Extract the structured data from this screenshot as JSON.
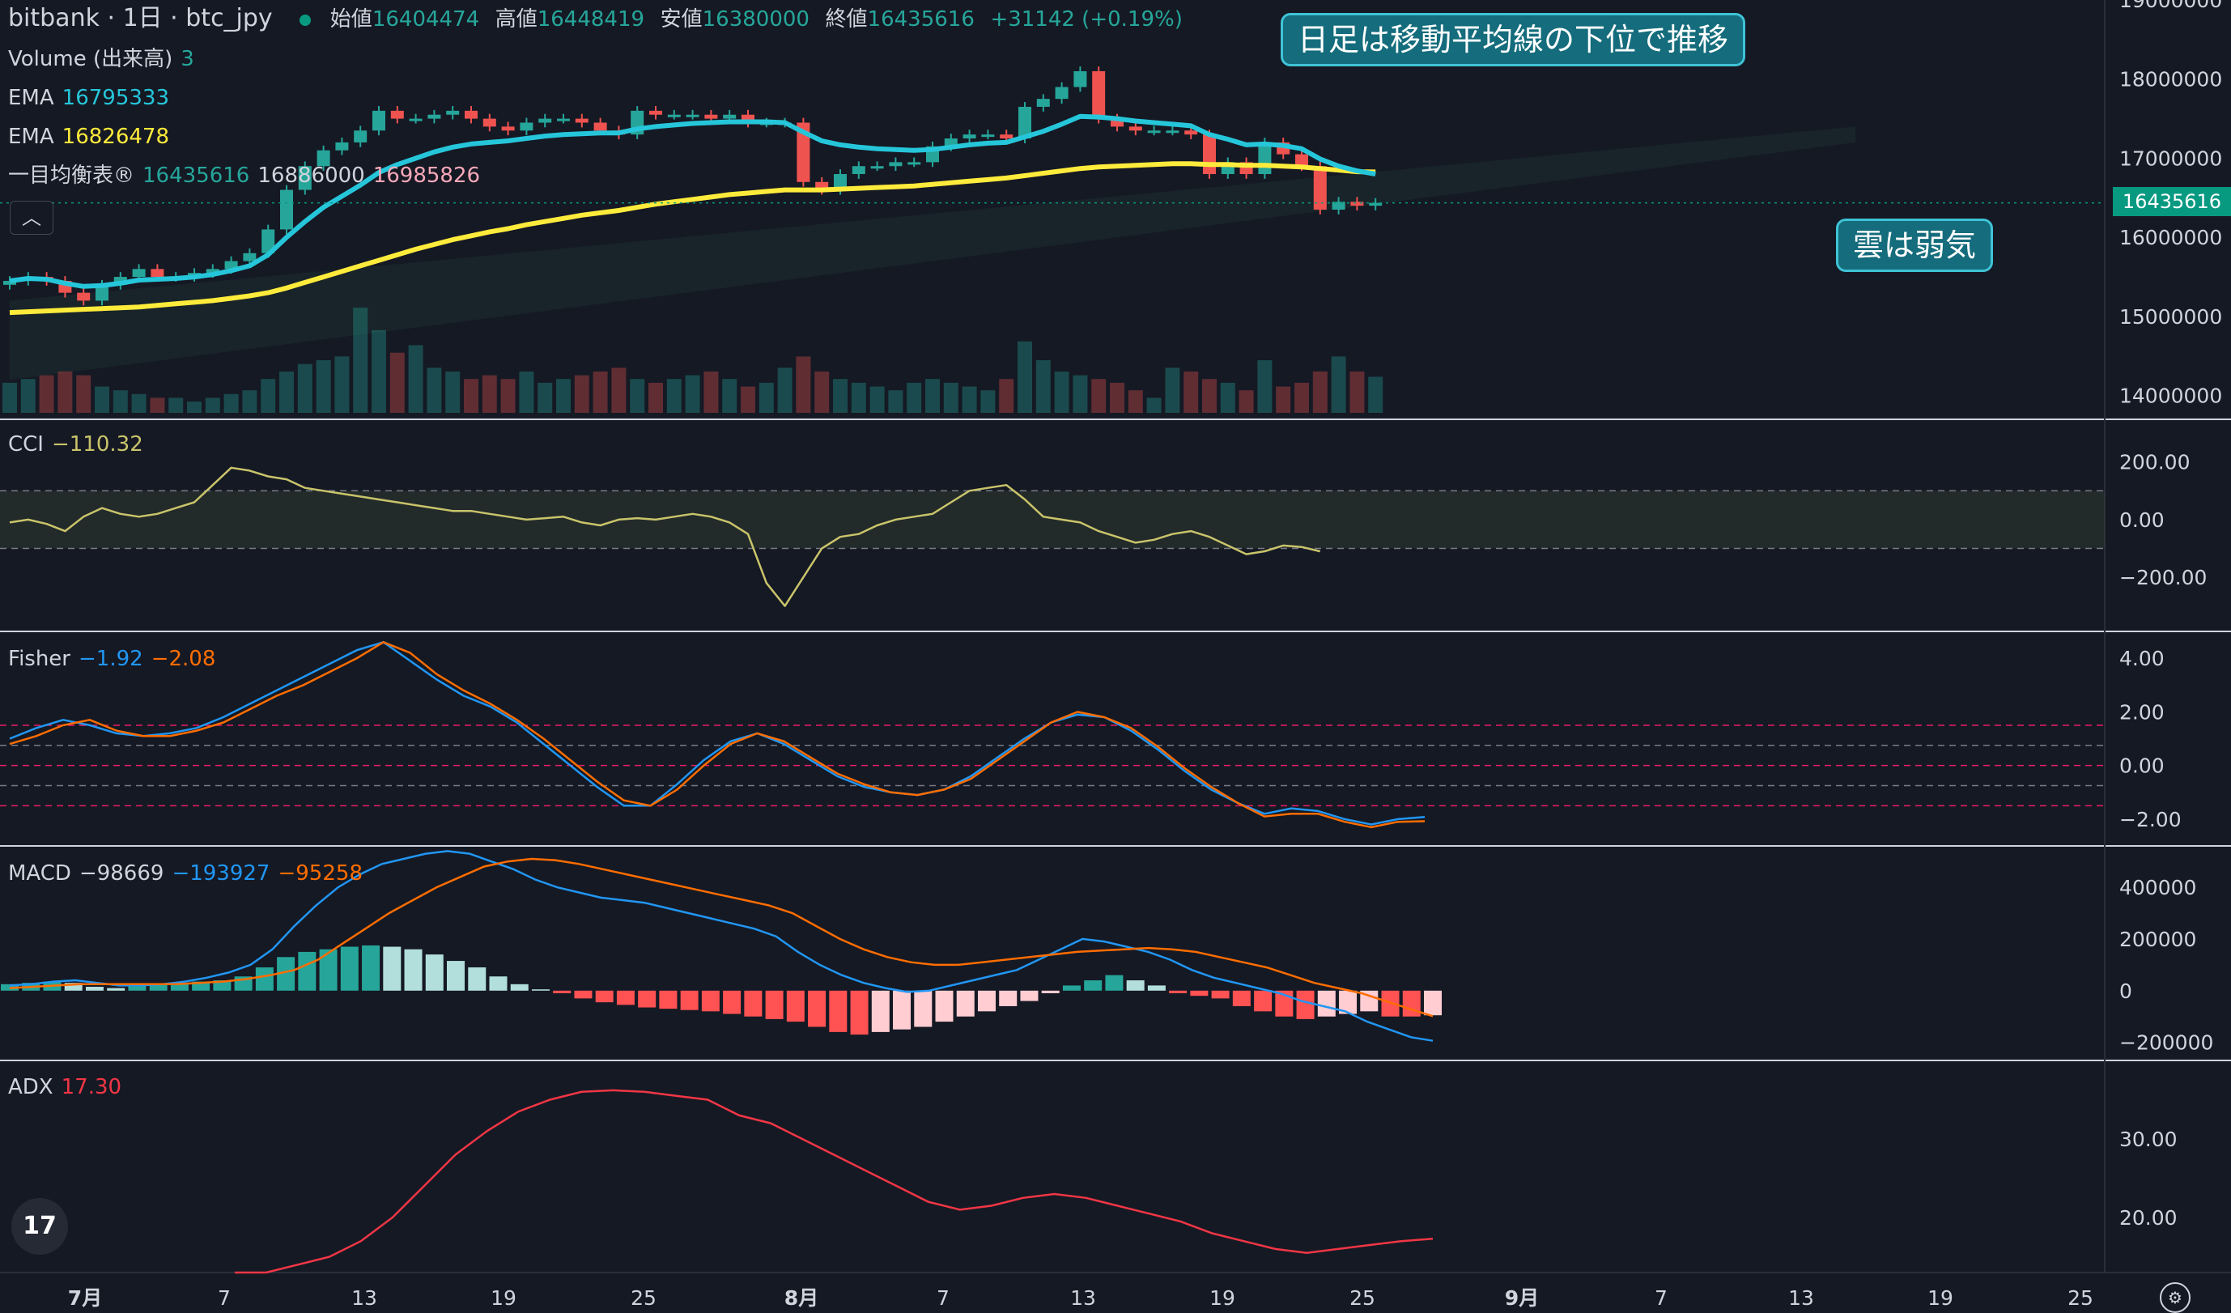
{
  "header": {
    "symbol": "bitbank · 1日 · btc_jpy",
    "open_label": "始値",
    "open": "16404474",
    "high_label": "高値",
    "high": "16448419",
    "low_label": "安値",
    "low": "16380000",
    "close_label": "終値",
    "close": "16435616",
    "change": "+31142 (+0.19%)"
  },
  "legends": {
    "volume_label": "Volume (出来高)",
    "volume_value": "3",
    "ema1_label": "EMA",
    "ema1_value": "16795333",
    "ema2_label": "EMA",
    "ema2_value": "16826478",
    "ichimoku_label": "一目均衡表®",
    "ichi_v1": "16435616",
    "ichi_v2": "16886000",
    "ichi_v3": "16985826",
    "cci_label": "CCI",
    "cci_value": "−110.32",
    "fisher_label": "Fisher",
    "fisher_v1": "−1.92",
    "fisher_v2": "−2.08",
    "macd_label": "MACD",
    "macd_v1": "−98669",
    "macd_v2": "−193927",
    "macd_v3": "−95258",
    "adx_label": "ADX",
    "adx_value": "17.30"
  },
  "callouts": {
    "top": "日足は移動平均線の下位で推移",
    "right": "雲は弱気"
  },
  "price_tag": "16435616",
  "colors": {
    "background": "#151924",
    "up": "#26a69a",
    "down": "#ef5350",
    "ema_fast": "#26c6da",
    "ema_slow": "#ffeb3b",
    "cci": "#c9c46a",
    "fisher1": "#2196f3",
    "fisher2": "#ff6d00",
    "macd": "#2196f3",
    "signal": "#ff6d00",
    "adx": "#f23645"
  },
  "chart_data": [
    {
      "type": "candlestick",
      "title": "bitbank · 1日 · btc_jpy",
      "x_labels": [
        "7月",
        "7",
        "13",
        "19",
        "25",
        "8月",
        "7",
        "13",
        "19",
        "25",
        "9月",
        "7",
        "13",
        "19",
        "25"
      ],
      "y_ticks": [
        "19000000",
        "18000000",
        "17000000",
        "16000000",
        "15000000",
        "14000000"
      ],
      "ylim": [
        13700000,
        19000000
      ],
      "close": [
        15450000,
        15500000,
        15450000,
        15300000,
        15200000,
        15400000,
        15500000,
        15600000,
        15500000,
        15500000,
        15550000,
        15600000,
        15700000,
        15800000,
        16100000,
        16600000,
        16900000,
        17100000,
        17200000,
        17350000,
        17600000,
        17500000,
        17500000,
        17550000,
        17600000,
        17500000,
        17400000,
        17350000,
        17450000,
        17500000,
        17500000,
        17450000,
        17350000,
        17300000,
        17600000,
        17550000,
        17550000,
        17550000,
        17500000,
        17550000,
        17450000,
        17450000,
        17450000,
        16700000,
        16600000,
        16800000,
        16900000,
        16900000,
        16950000,
        16950000,
        17150000,
        17250000,
        17300000,
        17300000,
        17250000,
        17650000,
        17750000,
        17900000,
        18100000,
        17500000,
        17400000,
        17350000,
        17350000,
        17350000,
        17300000,
        16800000,
        16950000,
        16800000,
        17200000,
        17050000,
        16900000,
        16350000,
        16450000,
        16400000,
        16435616
      ],
      "ema_fast": [
        15450000,
        15480000,
        15470000,
        15420000,
        15380000,
        15390000,
        15420000,
        15460000,
        15470000,
        15480000,
        15500000,
        15530000,
        15580000,
        15640000,
        15780000,
        16000000,
        16200000,
        16380000,
        16520000,
        16660000,
        16820000,
        16920000,
        17000000,
        17080000,
        17140000,
        17180000,
        17200000,
        17220000,
        17250000,
        17280000,
        17300000,
        17310000,
        17320000,
        17320000,
        17370000,
        17400000,
        17420000,
        17440000,
        17450000,
        17460000,
        17460000,
        17460000,
        17450000,
        17330000,
        17220000,
        17170000,
        17140000,
        17120000,
        17110000,
        17100000,
        17110000,
        17140000,
        17170000,
        17190000,
        17200000,
        17270000,
        17340000,
        17430000,
        17530000,
        17520000,
        17500000,
        17470000,
        17450000,
        17430000,
        17410000,
        17300000,
        17240000,
        17170000,
        17180000,
        17160000,
        17120000,
        16990000,
        16900000,
        16840000,
        16800000
      ],
      "ema_slow": [
        15050000,
        15060000,
        15070000,
        15080000,
        15090000,
        15100000,
        15110000,
        15120000,
        15140000,
        15160000,
        15180000,
        15200000,
        15230000,
        15260000,
        15300000,
        15360000,
        15430000,
        15500000,
        15570000,
        15640000,
        15710000,
        15780000,
        15850000,
        15910000,
        15970000,
        16020000,
        16070000,
        16110000,
        16160000,
        16200000,
        16240000,
        16280000,
        16310000,
        16340000,
        16380000,
        16420000,
        16450000,
        16480000,
        16510000,
        16540000,
        16560000,
        16580000,
        16600000,
        16600000,
        16600000,
        16610000,
        16620000,
        16630000,
        16640000,
        16650000,
        16670000,
        16690000,
        16710000,
        16730000,
        16750000,
        16780000,
        16810000,
        16840000,
        16870000,
        16890000,
        16900000,
        16910000,
        16920000,
        16930000,
        16930000,
        16920000,
        16920000,
        16910000,
        16910000,
        16900000,
        16890000,
        16870000,
        16850000,
        16830000,
        16826478
      ],
      "volume": [
        40,
        45,
        50,
        55,
        50,
        35,
        30,
        25,
        20,
        20,
        15,
        20,
        25,
        30,
        45,
        55,
        65,
        70,
        75,
        140,
        110,
        80,
        90,
        60,
        55,
        45,
        50,
        45,
        55,
        40,
        45,
        50,
        55,
        60,
        45,
        40,
        45,
        50,
        55,
        45,
        35,
        40,
        60,
        75,
        55,
        45,
        40,
        35,
        30,
        40,
        45,
        40,
        35,
        30,
        45,
        95,
        70,
        55,
        50,
        45,
        40,
        30,
        20,
        60,
        55,
        45,
        40,
        30,
        70,
        35,
        40,
        55,
        75,
        55,
        48
      ]
    },
    {
      "type": "line",
      "title": "CCI",
      "y_ticks": [
        "200.00",
        "0.00",
        "−200.00"
      ],
      "ylim": [
        -360,
        320
      ],
      "values": [
        -10,
        0,
        -15,
        -40,
        10,
        40,
        20,
        10,
        20,
        40,
        60,
        120,
        180,
        170,
        150,
        140,
        110,
        100,
        90,
        80,
        70,
        60,
        50,
        40,
        30,
        30,
        20,
        10,
        0,
        5,
        10,
        -10,
        -20,
        0,
        5,
        0,
        10,
        20,
        10,
        -10,
        -50,
        -220,
        -300,
        -200,
        -100,
        -60,
        -50,
        -20,
        0,
        10,
        20,
        60,
        100,
        110,
        120,
        70,
        10,
        0,
        -10,
        -40,
        -60,
        -80,
        -70,
        -50,
        -40,
        -60,
        -90,
        -120,
        -110,
        -90,
        -95,
        -110.32
      ]
    },
    {
      "type": "line",
      "title": "Fisher",
      "y_ticks": [
        "4.00",
        "2.00",
        "0.00",
        "−2.00"
      ],
      "ylim": [
        -3.0,
        5.0
      ],
      "series": [
        {
          "values": [
            1.0,
            1.4,
            1.7,
            1.5,
            1.2,
            1.1,
            1.2,
            1.4,
            1.8,
            2.3,
            2.8,
            3.3,
            3.8,
            4.3,
            4.6,
            3.9,
            3.2,
            2.6,
            2.2,
            1.6,
            0.8,
            0.0,
            -0.8,
            -1.5,
            -1.5,
            -0.7,
            0.2,
            0.9,
            1.2,
            0.8,
            0.2,
            -0.4,
            -0.8,
            -1.0,
            -1.1,
            -0.9,
            -0.4,
            0.3,
            1.0,
            1.6,
            1.9,
            1.8,
            1.3,
            0.6,
            -0.2,
            -0.9,
            -1.4,
            -1.8,
            -1.6,
            -1.7,
            -2.0,
            -2.2,
            -2.0,
            -1.92
          ]
        },
        {
          "values": [
            0.8,
            1.1,
            1.5,
            1.7,
            1.3,
            1.1,
            1.1,
            1.3,
            1.6,
            2.1,
            2.6,
            3.0,
            3.5,
            4.0,
            4.6,
            4.2,
            3.4,
            2.8,
            2.3,
            1.7,
            1.0,
            0.2,
            -0.6,
            -1.3,
            -1.5,
            -0.9,
            0.0,
            0.8,
            1.2,
            0.9,
            0.3,
            -0.3,
            -0.7,
            -1.0,
            -1.1,
            -0.9,
            -0.5,
            0.2,
            0.9,
            1.6,
            2.0,
            1.8,
            1.4,
            0.7,
            -0.1,
            -0.8,
            -1.4,
            -1.9,
            -1.8,
            -1.8,
            -2.1,
            -2.3,
            -2.1,
            -2.08
          ]
        }
      ]
    },
    {
      "type": "bar",
      "title": "MACD",
      "y_ticks": [
        "400000",
        "200000",
        "0",
        "−200000"
      ],
      "ylim": [
        -270000,
        560000
      ],
      "histogram": [
        25000,
        30000,
        35000,
        30000,
        15000,
        10000,
        20000,
        25000,
        30000,
        35000,
        40000,
        55000,
        90000,
        130000,
        150000,
        160000,
        170000,
        175000,
        170000,
        160000,
        140000,
        115000,
        90000,
        55000,
        25000,
        5000,
        -10000,
        -30000,
        -45000,
        -55000,
        -65000,
        -70000,
        -75000,
        -80000,
        -90000,
        -100000,
        -110000,
        -120000,
        -140000,
        -160000,
        -170000,
        -160000,
        -150000,
        -140000,
        -120000,
        -100000,
        -80000,
        -60000,
        -40000,
        -10000,
        20000,
        40000,
        60000,
        40000,
        20000,
        -10000,
        -20000,
        -30000,
        -60000,
        -80000,
        -100000,
        -110000,
        -100000,
        -90000,
        -80000,
        -100000,
        -100000,
        -95258
      ],
      "macd": [
        20000,
        25000,
        35000,
        40000,
        30000,
        20000,
        20000,
        25000,
        35000,
        50000,
        70000,
        100000,
        160000,
        250000,
        330000,
        400000,
        450000,
        490000,
        510000,
        530000,
        540000,
        530000,
        500000,
        470000,
        430000,
        400000,
        380000,
        360000,
        350000,
        340000,
        320000,
        300000,
        280000,
        260000,
        240000,
        210000,
        150000,
        100000,
        60000,
        30000,
        10000,
        -5000,
        0,
        20000,
        40000,
        60000,
        80000,
        120000,
        160000,
        200000,
        190000,
        170000,
        150000,
        120000,
        80000,
        50000,
        30000,
        10000,
        -10000,
        -40000,
        -60000,
        -80000,
        -120000,
        -150000,
        -180000,
        -193927
      ],
      "signal": [
        10000,
        15000,
        20000,
        25000,
        25000,
        25000,
        25000,
        25000,
        30000,
        35000,
        45000,
        60000,
        80000,
        120000,
        180000,
        240000,
        300000,
        350000,
        400000,
        440000,
        480000,
        500000,
        510000,
        505000,
        490000,
        470000,
        450000,
        430000,
        410000,
        390000,
        370000,
        350000,
        330000,
        300000,
        250000,
        200000,
        160000,
        130000,
        110000,
        100000,
        100000,
        110000,
        120000,
        130000,
        140000,
        150000,
        155000,
        160000,
        165000,
        160000,
        150000,
        130000,
        110000,
        90000,
        60000,
        30000,
        10000,
        -10000,
        -40000,
        -70000,
        -98669
      ]
    },
    {
      "type": "line",
      "title": "ADX",
      "y_ticks": [
        "30.00",
        "20.00"
      ],
      "ylim": [
        13,
        40
      ],
      "values": [
        12,
        13,
        14,
        15,
        17,
        20,
        24,
        28,
        31,
        33.5,
        35,
        36,
        36.2,
        36,
        35.5,
        35,
        33,
        32,
        30,
        28,
        26,
        24,
        22,
        21,
        21.5,
        22.5,
        23,
        22.5,
        21.5,
        20.5,
        19.5,
        18,
        17,
        16,
        15.5,
        16,
        16.5,
        17,
        17.3
      ]
    }
  ]
}
